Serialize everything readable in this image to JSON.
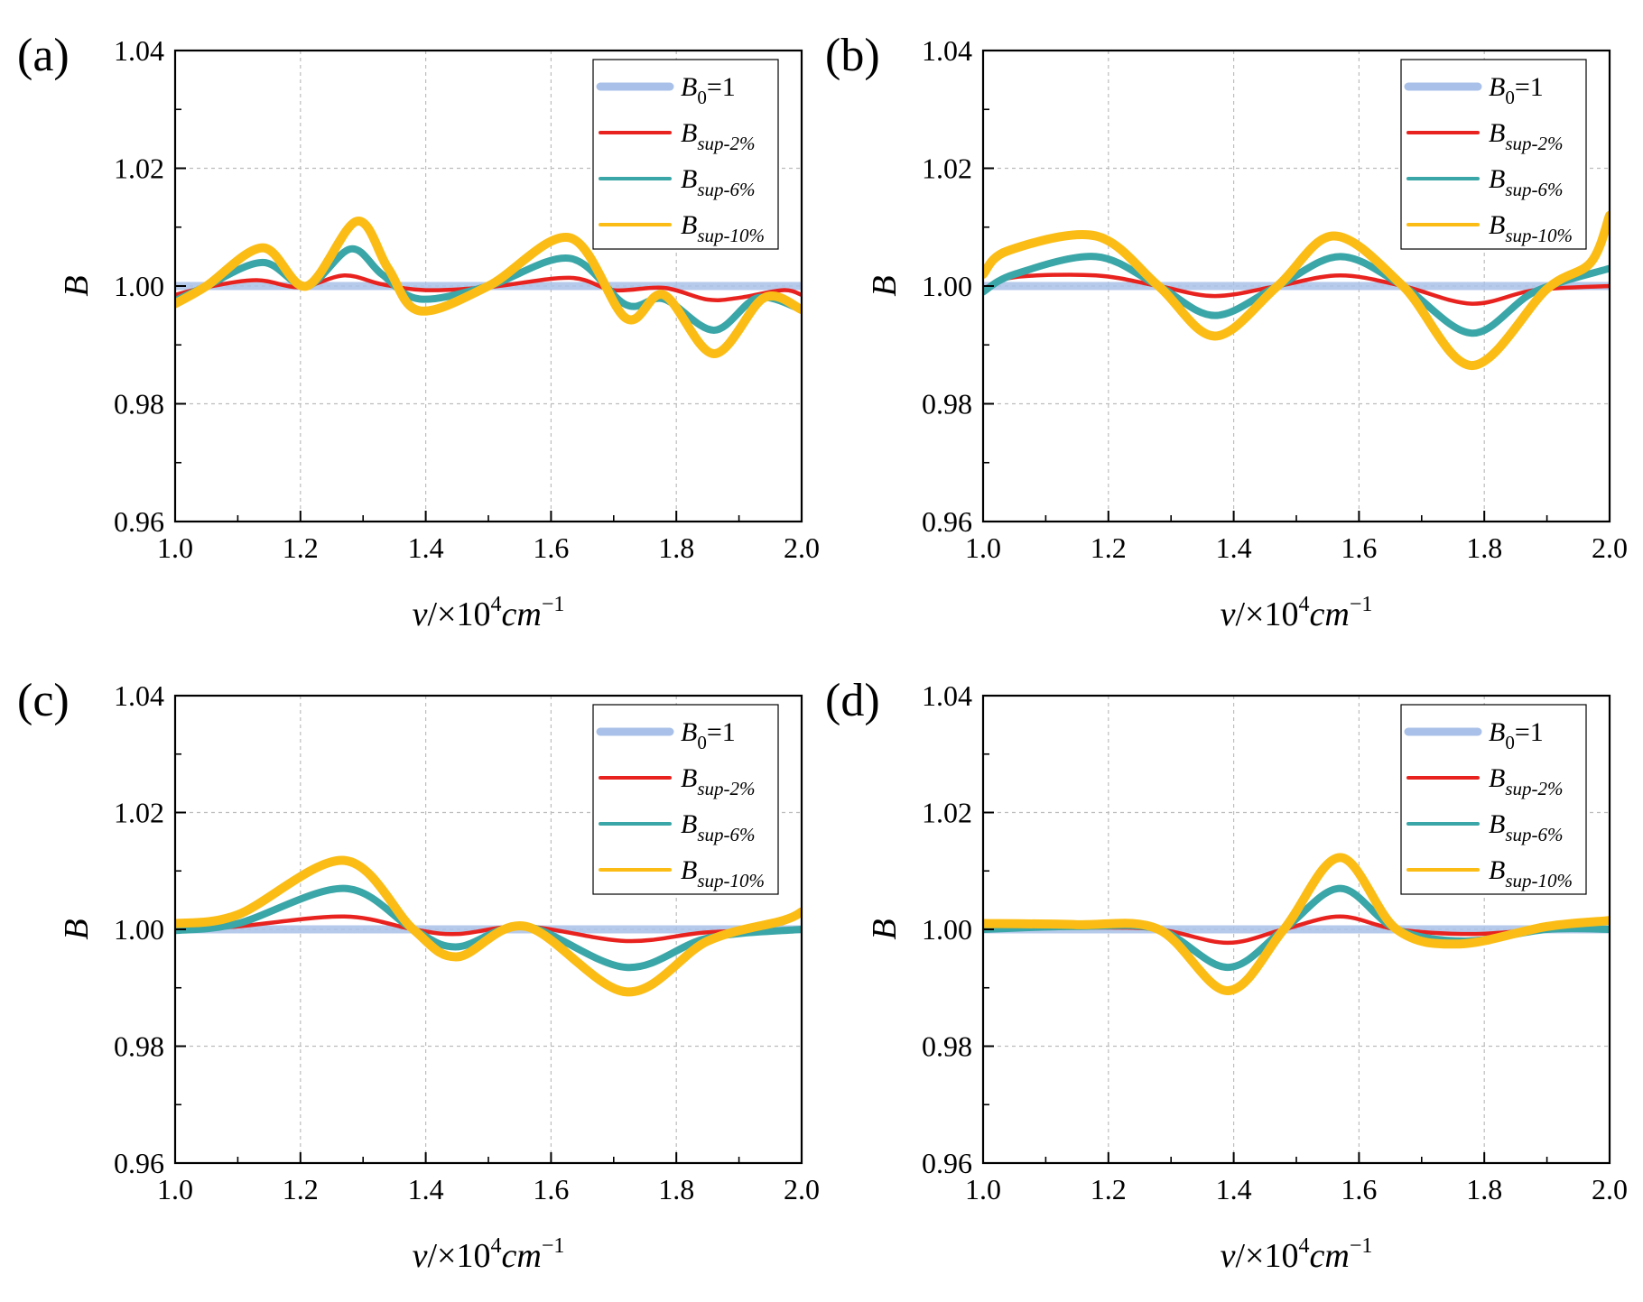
{
  "figure": {
    "panels": [
      "(a)",
      "(b)",
      "(c)",
      "(d)"
    ],
    "x_axis_title": {
      "var": "v",
      "sep": "/×10",
      "exp": "4",
      "unit": "cm",
      "unit_exp": "−1"
    },
    "y_axis_title": "B",
    "x_tick_labels": [
      "1.0",
      "1.2",
      "1.4",
      "1.6",
      "1.8",
      "2.0"
    ],
    "y_tick_labels": [
      "0.96",
      "0.98",
      "1.00",
      "1.02",
      "1.04"
    ],
    "legend": [
      {
        "main": "B",
        "sub": "0",
        "tail": "=1"
      },
      {
        "main": "B",
        "sub": "sup-2%",
        "tail": ""
      },
      {
        "main": "B",
        "sub": "sup-6%",
        "tail": ""
      },
      {
        "main": "B",
        "sub": "sup-10%",
        "tail": ""
      }
    ]
  },
  "chart_data": [
    {
      "panel": "(a)",
      "type": "line",
      "xlim": [
        1.0,
        2.0
      ],
      "ylim": [
        0.96,
        1.04
      ],
      "grid": true,
      "legend_position": "top-right",
      "series": [
        {
          "name": "B0=1",
          "color": "#a9c1e8",
          "x": [
            1.0,
            2.0
          ],
          "y": [
            1.0,
            1.0
          ]
        },
        {
          "name": "Bsup-2%",
          "color": "#e8231f",
          "x": [
            1.0,
            1.05,
            1.13,
            1.2,
            1.27,
            1.33,
            1.4,
            1.5,
            1.63,
            1.7,
            1.78,
            1.85,
            1.9,
            1.97,
            2.0
          ],
          "y": [
            0.9985,
            0.9998,
            1.001,
            0.9998,
            1.0018,
            1.0003,
            0.9993,
            0.9998,
            1.0014,
            0.9993,
            0.9997,
            0.9977,
            0.998,
            0.9993,
            0.9985
          ]
        },
        {
          "name": "Bsup-6%",
          "color": "#3aa6a7",
          "x": [
            1.0,
            1.05,
            1.14,
            1.21,
            1.28,
            1.33,
            1.39,
            1.5,
            1.63,
            1.72,
            1.78,
            1.86,
            1.93,
            2.0
          ],
          "y": [
            0.9975,
            1.0,
            1.004,
            1.0,
            1.0063,
            1.002,
            0.9978,
            1.0,
            1.0047,
            0.9968,
            0.9978,
            0.9925,
            0.998,
            0.996
          ]
        },
        {
          "name": "Bsup-10%",
          "color": "#fbbd15",
          "x": [
            1.0,
            1.05,
            1.14,
            1.21,
            1.29,
            1.34,
            1.39,
            1.5,
            1.63,
            1.72,
            1.78,
            1.86,
            1.94,
            2.0
          ],
          "y": [
            0.997,
            1.0,
            1.0065,
            1.0,
            1.011,
            1.003,
            0.9958,
            1.0,
            1.0082,
            0.9945,
            0.9985,
            0.9885,
            0.998,
            0.996
          ]
        }
      ]
    },
    {
      "panel": "(b)",
      "type": "line",
      "xlim": [
        1.0,
        2.0
      ],
      "ylim": [
        0.96,
        1.04
      ],
      "grid": true,
      "legend_position": "top-right",
      "series": [
        {
          "name": "B0=1",
          "color": "#a9c1e8",
          "x": [
            1.0,
            2.0
          ],
          "y": [
            1.0,
            1.0
          ]
        },
        {
          "name": "Bsup-2%",
          "color": "#e8231f",
          "x": [
            1.0,
            1.05,
            1.18,
            1.28,
            1.37,
            1.47,
            1.57,
            1.67,
            1.78,
            1.88,
            2.0
          ],
          "y": [
            0.9995,
            1.0015,
            1.0018,
            1.0,
            0.9983,
            1.0,
            1.0018,
            1.0,
            0.997,
            0.9993,
            1.0
          ]
        },
        {
          "name": "Bsup-6%",
          "color": "#3aa6a7",
          "x": [
            1.0,
            1.05,
            1.18,
            1.28,
            1.37,
            1.47,
            1.57,
            1.67,
            1.78,
            1.88,
            2.0
          ],
          "y": [
            0.999,
            1.002,
            1.005,
            1.0,
            0.995,
            1.0,
            1.005,
            1.0,
            0.992,
            0.999,
            1.003
          ]
        },
        {
          "name": "Bsup-10%",
          "color": "#fbbd15",
          "x": [
            1.0,
            1.04,
            1.18,
            1.28,
            1.37,
            1.47,
            1.56,
            1.67,
            1.78,
            1.9,
            1.97,
            2.0
          ],
          "y": [
            1.002,
            1.006,
            1.0085,
            1.0,
            0.9915,
            1.0,
            1.0085,
            1.0,
            0.9865,
            0.9995,
            1.004,
            1.012
          ]
        }
      ]
    },
    {
      "panel": "(c)",
      "type": "line",
      "xlim": [
        1.0,
        2.0
      ],
      "ylim": [
        0.96,
        1.04
      ],
      "grid": true,
      "legend_position": "top-right",
      "series": [
        {
          "name": "B0=1",
          "color": "#a9c1e8",
          "x": [
            1.0,
            2.0
          ],
          "y": [
            1.0,
            1.0
          ]
        },
        {
          "name": "Bsup-2%",
          "color": "#e8231f",
          "x": [
            1.0,
            1.1,
            1.27,
            1.38,
            1.45,
            1.56,
            1.72,
            1.85,
            2.0
          ],
          "y": [
            0.9998,
            1.0005,
            1.0022,
            1.0,
            0.9992,
            1.0005,
            0.998,
            0.9995,
            1.0
          ]
        },
        {
          "name": "Bsup-6%",
          "color": "#3aa6a7",
          "x": [
            1.0,
            1.1,
            1.27,
            1.38,
            1.45,
            1.56,
            1.72,
            1.85,
            2.0
          ],
          "y": [
            0.9998,
            1.001,
            1.007,
            1.0,
            0.997,
            1.0005,
            0.9935,
            0.9985,
            1.0
          ]
        },
        {
          "name": "Bsup-10%",
          "color": "#fbbd15",
          "x": [
            1.0,
            1.1,
            1.27,
            1.38,
            1.45,
            1.56,
            1.72,
            1.85,
            1.97,
            2.0
          ],
          "y": [
            1.001,
            1.0025,
            1.0118,
            1.0,
            0.9953,
            1.0005,
            0.9893,
            0.998,
            1.0015,
            1.003
          ]
        }
      ]
    },
    {
      "panel": "(d)",
      "type": "line",
      "xlim": [
        1.0,
        2.0
      ],
      "ylim": [
        0.96,
        1.04
      ],
      "grid": true,
      "legend_position": "top-right",
      "series": [
        {
          "name": "B0=1",
          "color": "#a9c1e8",
          "x": [
            1.0,
            2.0
          ],
          "y": [
            1.0,
            1.0
          ]
        },
        {
          "name": "Bsup-2%",
          "color": "#e8231f",
          "x": [
            1.0,
            1.15,
            1.28,
            1.39,
            1.48,
            1.57,
            1.66,
            1.78,
            1.9,
            2.0
          ],
          "y": [
            1.0,
            1.0003,
            1.0,
            0.9977,
            1.0,
            1.0022,
            1.0,
            0.9992,
            1.0,
            1.0
          ]
        },
        {
          "name": "Bsup-6%",
          "color": "#3aa6a7",
          "x": [
            1.0,
            1.15,
            1.28,
            1.39,
            1.48,
            1.57,
            1.66,
            1.77,
            1.9,
            2.0
          ],
          "y": [
            1.0,
            1.0005,
            1.0,
            0.9935,
            1.0,
            1.007,
            1.0,
            0.998,
            1.0,
            1.0
          ]
        },
        {
          "name": "Bsup-10%",
          "color": "#fbbd15",
          "x": [
            1.0,
            1.15,
            1.28,
            1.39,
            1.48,
            1.57,
            1.66,
            1.76,
            1.9,
            2.0
          ],
          "y": [
            1.001,
            1.0008,
            1.0,
            0.9895,
            1.0,
            1.0123,
            1.0,
            0.9975,
            1.0005,
            1.0015
          ]
        }
      ]
    }
  ]
}
